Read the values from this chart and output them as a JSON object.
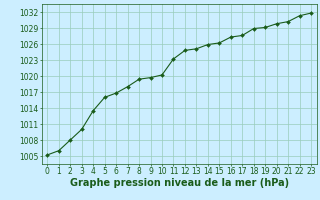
{
  "x": [
    0,
    1,
    2,
    3,
    4,
    5,
    6,
    7,
    8,
    9,
    10,
    11,
    12,
    13,
    14,
    15,
    16,
    17,
    18,
    19,
    20,
    21,
    22,
    23
  ],
  "y": [
    1005.2,
    1006.0,
    1008.0,
    1010.0,
    1013.5,
    1016.0,
    1016.8,
    1018.0,
    1019.4,
    1019.7,
    1020.2,
    1023.2,
    1024.8,
    1025.1,
    1025.9,
    1026.2,
    1027.3,
    1027.6,
    1028.9,
    1029.1,
    1029.8,
    1030.2,
    1031.3,
    1031.8
  ],
  "line_color": "#1a5c1a",
  "marker": "D",
  "marker_size": 2.0,
  "bg_color": "#cceeff",
  "grid_color": "#99ccbb",
  "xlabel": "Graphe pression niveau de la mer (hPa)",
  "xlabel_fontsize": 7,
  "yticks": [
    1005,
    1008,
    1011,
    1014,
    1017,
    1020,
    1023,
    1026,
    1029,
    1032
  ],
  "xticks": [
    0,
    1,
    2,
    3,
    4,
    5,
    6,
    7,
    8,
    9,
    10,
    11,
    12,
    13,
    14,
    15,
    16,
    17,
    18,
    19,
    20,
    21,
    22,
    23
  ],
  "ylim": [
    1003.5,
    1033.5
  ],
  "xlim": [
    -0.5,
    23.5
  ],
  "tick_fontsize": 5.5,
  "tick_color": "#1a5c1a",
  "label_color": "#1a5c1a",
  "spine_color": "#1a5c1a"
}
